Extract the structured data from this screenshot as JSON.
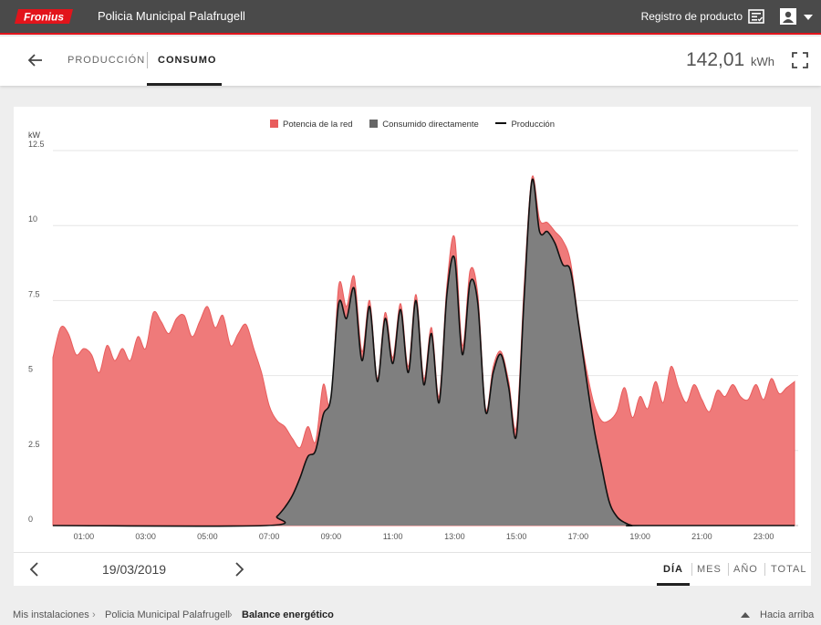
{
  "header": {
    "logo_text": "Fronius",
    "title": "Policia Municipal Palafrugell",
    "product_registration": "Registro de producto",
    "icons": [
      "product-registration-icon",
      "user-icon",
      "caret-down-icon"
    ]
  },
  "subheader": {
    "tabs": [
      {
        "label": "PRODUCCIÓN",
        "active": false
      },
      {
        "label": "CONSUMO",
        "active": true
      }
    ],
    "total_value": "142,01",
    "total_unit": "kWh"
  },
  "navigation": {
    "date": "19/03/2019",
    "periods": [
      {
        "label": "DÍA",
        "active": true
      },
      {
        "label": "MES",
        "active": false
      },
      {
        "label": "AÑO",
        "active": false
      },
      {
        "label": "TOTAL",
        "active": false
      }
    ]
  },
  "footer": {
    "breadcrumb": [
      "Mis instalaciones",
      "Policia Municipal Palafrugell",
      "Balance energético"
    ],
    "scroll_top": "Hacia arriba"
  },
  "colors": {
    "grid_power": "#e85c5c",
    "grid_power_fill": "#ef7a7a",
    "direct_consumption": "#7f7f7f",
    "production_line": "#111111",
    "header_bg": "#4a4a4a",
    "brand_red": "#e2141b"
  },
  "chart_data": {
    "type": "area",
    "ylabel": "kW",
    "ylim": [
      0,
      12.5
    ],
    "yticks": [
      "0",
      "2.5",
      "5",
      "7.5",
      "10",
      "12.5"
    ],
    "xlim": [
      0,
      24
    ],
    "xticks": [
      "01:00",
      "03:00",
      "05:00",
      "07:00",
      "09:00",
      "11:00",
      "13:00",
      "15:00",
      "17:00",
      "19:00",
      "21:00",
      "23:00"
    ],
    "xtick_hours": [
      1,
      3,
      5,
      7,
      9,
      11,
      13,
      15,
      17,
      19,
      21,
      23
    ],
    "legend": [
      "Potencia de la red",
      "Consumido directamente",
      "Producción"
    ],
    "legend_position": "top-center",
    "grid": true,
    "series": [
      {
        "name": "Potencia de la red",
        "x": [
          0,
          0.25,
          0.5,
          0.75,
          1,
          1.25,
          1.5,
          1.75,
          2,
          2.25,
          2.5,
          2.75,
          3,
          3.25,
          3.5,
          3.75,
          4,
          4.25,
          4.5,
          4.75,
          5,
          5.25,
          5.5,
          5.75,
          6,
          6.25,
          6.5,
          6.75,
          7,
          7.25,
          7.5,
          7.75,
          8,
          8.25,
          8.5,
          8.75,
          9,
          9.25,
          9.5,
          9.75,
          10,
          10.25,
          10.5,
          10.75,
          11,
          11.25,
          11.5,
          11.75,
          12,
          12.25,
          12.5,
          12.75,
          13,
          13.25,
          13.5,
          13.75,
          14,
          14.25,
          14.5,
          14.75,
          15,
          15.25,
          15.5,
          15.75,
          16,
          16.25,
          16.5,
          16.75,
          17,
          17.25,
          17.5,
          17.75,
          18,
          18.25,
          18.5,
          18.75,
          19,
          19.25,
          19.5,
          19.75,
          20,
          20.25,
          20.5,
          20.75,
          21,
          21.25,
          21.5,
          21.75,
          22,
          22.25,
          22.5,
          22.75,
          23,
          23.25,
          23.5,
          23.75,
          24
        ],
        "values": [
          5.6,
          6.6,
          6.4,
          5.7,
          5.9,
          5.7,
          5.1,
          6.0,
          5.5,
          5.9,
          5.5,
          6.3,
          5.9,
          7.1,
          6.8,
          6.4,
          6.9,
          7.0,
          6.3,
          6.8,
          7.3,
          6.6,
          7.0,
          6.0,
          6.4,
          6.7,
          5.9,
          5.1,
          4.0,
          3.5,
          3.3,
          2.9,
          2.6,
          3.3,
          2.8,
          4.7,
          4.0,
          8.0,
          7.3,
          8.3,
          5.8,
          7.5,
          4.9,
          7.1,
          5.6,
          7.4,
          5.3,
          7.7,
          4.9,
          6.6,
          4.3,
          8.0,
          9.6,
          6.0,
          8.5,
          7.7,
          3.9,
          5.3,
          5.8,
          4.8,
          3.3,
          8.0,
          11.6,
          10.2,
          10.1,
          9.8,
          9.5,
          8.8,
          6.9,
          5.3,
          4.1,
          3.5,
          3.5,
          3.8,
          4.6,
          3.6,
          4.3,
          3.9,
          4.8,
          4.1,
          5.3,
          4.6,
          4.1,
          4.7,
          4.2,
          3.8,
          4.5,
          4.3,
          4.7,
          4.3,
          4.2,
          4.7,
          4.2,
          4.9,
          4.4,
          4.6,
          4.8
        ],
        "color": "#ef7a7a"
      },
      {
        "name": "Consumido directamente",
        "x": [
          0,
          6.9,
          7.25,
          7.5,
          7.75,
          8,
          8.25,
          8.5,
          8.75,
          9,
          9.25,
          9.5,
          9.75,
          10,
          10.25,
          10.5,
          10.75,
          11,
          11.25,
          11.5,
          11.75,
          12,
          12.25,
          12.5,
          12.75,
          13,
          13.25,
          13.5,
          13.75,
          14,
          14.25,
          14.5,
          14.75,
          15,
          15.25,
          15.5,
          15.75,
          16,
          16.25,
          16.5,
          16.75,
          17,
          17.25,
          17.5,
          17.75,
          18,
          18.25,
          18.5,
          18.75,
          19,
          24
        ],
        "values": [
          0,
          0,
          0.3,
          0.6,
          1.0,
          1.6,
          2.3,
          2.5,
          3.7,
          4.3,
          7.4,
          6.9,
          7.9,
          5.5,
          7.3,
          4.8,
          6.9,
          5.4,
          7.2,
          5.1,
          7.5,
          4.7,
          6.4,
          4.1,
          7.7,
          8.9,
          5.7,
          8.1,
          7.4,
          3.8,
          5.1,
          5.7,
          4.6,
          3.0,
          7.6,
          11.5,
          9.8,
          9.8,
          9.4,
          8.7,
          8.5,
          6.8,
          5.0,
          3.3,
          2.0,
          0.8,
          0.3,
          0.1,
          0,
          0,
          0
        ],
        "color": "#7f7f7f"
      },
      {
        "name": "Producción",
        "x": [
          0,
          6.9,
          7.25,
          7.5,
          7.75,
          8,
          8.25,
          8.5,
          8.75,
          9,
          9.25,
          9.5,
          9.75,
          10,
          10.25,
          10.5,
          10.75,
          11,
          11.25,
          11.5,
          11.75,
          12,
          12.25,
          12.5,
          12.75,
          13,
          13.25,
          13.5,
          13.75,
          14,
          14.25,
          14.5,
          14.75,
          15,
          15.25,
          15.5,
          15.75,
          16,
          16.25,
          16.5,
          16.75,
          17,
          17.25,
          17.5,
          17.75,
          18,
          18.25,
          18.5,
          18.75,
          19,
          24
        ],
        "values": [
          0,
          0,
          0.3,
          0.6,
          1.0,
          1.6,
          2.3,
          2.5,
          3.7,
          4.3,
          7.4,
          6.9,
          7.9,
          5.5,
          7.3,
          4.8,
          6.9,
          5.4,
          7.2,
          5.1,
          7.5,
          4.7,
          6.4,
          4.1,
          7.7,
          8.9,
          5.7,
          8.1,
          7.4,
          3.8,
          5.1,
          5.7,
          4.6,
          3.0,
          7.6,
          11.5,
          9.8,
          9.8,
          9.4,
          8.7,
          8.5,
          6.8,
          5.0,
          3.3,
          2.0,
          0.8,
          0.3,
          0.1,
          0,
          0,
          0
        ],
        "color": "#111111"
      }
    ]
  }
}
